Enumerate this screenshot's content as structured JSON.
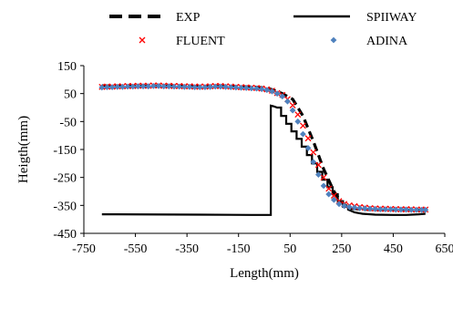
{
  "chart_data": {
    "type": "line",
    "title": "",
    "xlabel": "Length(mm)",
    "ylabel": "Heigth(mm)",
    "xlim": [
      -750,
      650
    ],
    "ylim": [
      -450,
      150
    ],
    "x_ticks": [
      -750,
      -550,
      -350,
      -150,
      50,
      250,
      450,
      650
    ],
    "y_ticks": [
      -450,
      -350,
      -250,
      -150,
      -50,
      50,
      150
    ],
    "x_tick_labels": [
      "-750",
      "-550",
      "-350",
      "-150",
      "50",
      "250",
      "450",
      "650"
    ],
    "y_tick_labels": [
      "-450",
      "-350",
      "-250",
      "-150",
      "-50",
      "50",
      "150"
    ],
    "grid": false,
    "legend_position": "top",
    "series": [
      {
        "name": "EXP",
        "style": "dashed-line",
        "color": "#000000",
        "x": [
          -680,
          -600,
          -500,
          -400,
          -300,
          -200,
          -100,
          -40,
          0,
          20,
          60,
          100,
          140,
          180,
          220,
          250,
          280,
          320,
          360,
          400,
          450,
          500,
          550,
          575
        ],
        "y": [
          78,
          77,
          77,
          77,
          76,
          76,
          74,
          70,
          58,
          50,
          30,
          -30,
          -120,
          -220,
          -300,
          -340,
          -360,
          -363,
          -365,
          -366,
          -366,
          -367,
          -367,
          -367
        ]
      },
      {
        "name": "SPIIWAY",
        "style": "solid-line",
        "color": "#000000",
        "x": [
          -680,
          -300,
          -100,
          -25,
          -25,
          -15,
          0,
          15,
          15,
          35,
          35,
          55,
          55,
          75,
          75,
          95,
          95,
          115,
          115,
          135,
          135,
          155,
          155,
          175,
          175,
          195,
          195,
          215,
          215,
          235,
          235,
          255,
          255,
          275,
          275,
          300,
          330,
          380,
          450,
          500,
          550,
          575
        ],
        "y": [
          -382,
          -383,
          -384,
          -384,
          7,
          5,
          0,
          0,
          -30,
          -30,
          -58,
          -58,
          -85,
          -85,
          -112,
          -112,
          -140,
          -140,
          -170,
          -170,
          -200,
          -200,
          -230,
          -230,
          -258,
          -258,
          -285,
          -285,
          -310,
          -310,
          -335,
          -335,
          -355,
          -355,
          -365,
          -375,
          -380,
          -383,
          -384,
          -384,
          -382,
          -380
        ]
      },
      {
        "name": "FLUENT",
        "style": "x-marker",
        "color": "#ff0000",
        "x": [
          -680,
          -660,
          -640,
          -620,
          -600,
          -580,
          -560,
          -540,
          -520,
          -500,
          -480,
          -460,
          -440,
          -420,
          -400,
          -380,
          -360,
          -340,
          -320,
          -300,
          -280,
          -260,
          -240,
          -220,
          -200,
          -180,
          -160,
          -140,
          -120,
          -100,
          -80,
          -60,
          -40,
          -20,
          0,
          20,
          40,
          60,
          80,
          100,
          120,
          140,
          160,
          180,
          200,
          220,
          240,
          260,
          280,
          300,
          320,
          340,
          360,
          380,
          400,
          420,
          440,
          460,
          480,
          500,
          520,
          540,
          560,
          575
        ],
        "y": [
          74,
          75,
          75,
          76,
          76,
          77,
          77,
          78,
          78,
          78,
          79,
          79,
          78,
          78,
          77,
          77,
          76,
          76,
          75,
          75,
          75,
          76,
          77,
          77,
          76,
          75,
          74,
          73,
          72,
          71,
          70,
          68,
          65,
          60,
          52,
          45,
          30,
          8,
          -25,
          -65,
          -110,
          -160,
          -205,
          -250,
          -290,
          -315,
          -335,
          -345,
          -350,
          -353,
          -356,
          -358,
          -360,
          -361,
          -362,
          -362,
          -363,
          -363,
          -364,
          -364,
          -364,
          -365,
          -365,
          -365
        ]
      },
      {
        "name": "ADINA",
        "style": "diamond-marker",
        "color": "#4f81bd",
        "x": [
          -680,
          -660,
          -640,
          -620,
          -600,
          -580,
          -560,
          -540,
          -520,
          -500,
          -480,
          -460,
          -440,
          -420,
          -400,
          -380,
          -360,
          -340,
          -320,
          -300,
          -280,
          -260,
          -240,
          -220,
          -200,
          -180,
          -160,
          -140,
          -120,
          -100,
          -80,
          -60,
          -40,
          -20,
          0,
          20,
          40,
          60,
          80,
          100,
          120,
          140,
          160,
          180,
          200,
          220,
          240,
          260,
          280,
          300,
          320,
          340,
          360,
          380,
          400,
          420,
          440,
          460,
          480,
          500,
          520,
          540,
          560,
          575
        ],
        "y": [
          72,
          73,
          73,
          74,
          74,
          75,
          75,
          76,
          76,
          76,
          77,
          77,
          76,
          76,
          75,
          75,
          74,
          74,
          73,
          73,
          73,
          74,
          75,
          75,
          74,
          73,
          72,
          71,
          70,
          69,
          68,
          66,
          63,
          58,
          50,
          40,
          22,
          -10,
          -50,
          -95,
          -145,
          -195,
          -240,
          -280,
          -310,
          -330,
          -345,
          -352,
          -356,
          -358,
          -360,
          -361,
          -362,
          -363,
          -364,
          -364,
          -364,
          -365,
          -365,
          -365,
          -366,
          -366,
          -366,
          -366
        ]
      }
    ]
  }
}
